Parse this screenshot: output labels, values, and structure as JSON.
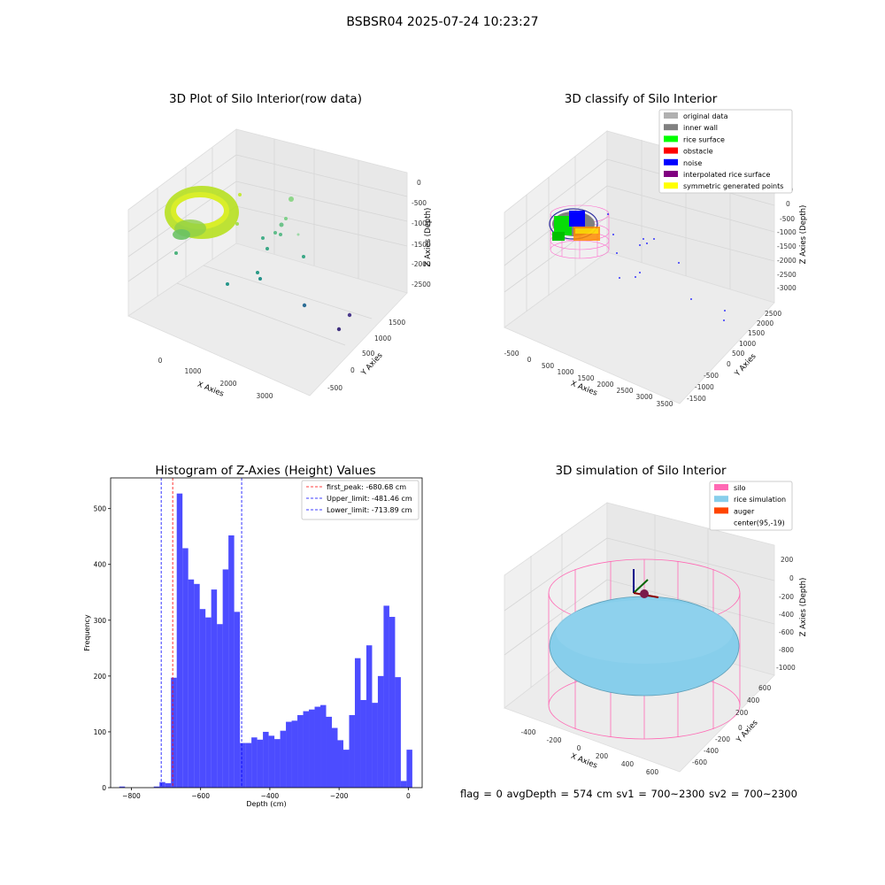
{
  "figure": {
    "suptitle": "BSBSR04 2025-07-24 10:23:27",
    "footer": "flag = 0     avgDepth = 574 cm  sv1 = 700~2300  sv2 = 700~2300"
  },
  "panels": {
    "raw": {
      "title": "3D Plot of Silo Interior(row data)",
      "xlabel": "X Axies",
      "ylabel": "Y Axies",
      "zlabel": "Z Axies (Depth)",
      "xticks": [
        "0",
        "1000",
        "2000",
        "3000"
      ],
      "yticks": [
        "-500",
        "0",
        "500",
        "1000",
        "1500"
      ],
      "zticks": [
        "0",
        "-500",
        "-1000",
        "-1500",
        "-2000",
        "-2500"
      ]
    },
    "classify": {
      "title": "3D classify of Silo Interior",
      "xlabel": "X Axies",
      "ylabel": "Y Axies",
      "zlabel": "Z Axies (Depth)",
      "xticks": [
        "-500",
        "0",
        "500",
        "1000",
        "1500",
        "2000",
        "2500",
        "3000",
        "3500"
      ],
      "yticks": [
        "-1500",
        "-1000",
        "-500",
        "0",
        "500",
        "1000",
        "1500",
        "2000",
        "2500"
      ],
      "zticks": [
        "500",
        "0",
        "-500",
        "-1000",
        "-1500",
        "-2000",
        "-2500",
        "-3000"
      ],
      "legend": [
        {
          "label": "original data",
          "color": "#b0b0b0"
        },
        {
          "label": "inner wall",
          "color": "#808080"
        },
        {
          "label": "rice surface",
          "color": "#00ff00"
        },
        {
          "label": "obstacle",
          "color": "#ff0000"
        },
        {
          "label": "noise",
          "color": "#0000ff"
        },
        {
          "label": "interpolated rice surface",
          "color": "#800080"
        },
        {
          "label": "symmetric generated points",
          "color": "#ffff00"
        }
      ]
    },
    "simulation": {
      "title": "3D simulation of Silo Interior",
      "xlabel": "X Axies",
      "ylabel": "Y Axies",
      "zlabel": "Z Axies (Depth)",
      "xticks": [
        "-400",
        "-200",
        "0",
        "200",
        "400",
        "600"
      ],
      "yticks": [
        "-600",
        "-400",
        "-200",
        "0",
        "200",
        "400",
        "600"
      ],
      "zticks": [
        "200",
        "0",
        "-200",
        "-400",
        "-600",
        "-800",
        "-1000"
      ],
      "legend": [
        {
          "label": "silo",
          "color": "#ff69b4"
        },
        {
          "label": "rice simulation",
          "color": "#87ceeb"
        },
        {
          "label": "auger",
          "color": "#ff4500"
        },
        {
          "label": "center(95,-19)",
          "color": "none"
        }
      ]
    }
  },
  "chart_data": {
    "type": "bar",
    "title": "Histogram of Z-Axies (Height) Values",
    "xlabel": "Depth (cm)",
    "ylabel": "Frequency",
    "xlim": [
      -860,
      40
    ],
    "ylim": [
      0,
      555
    ],
    "xticks": [
      -800,
      -600,
      -400,
      -200,
      0
    ],
    "yticks": [
      0,
      100,
      200,
      300,
      400,
      500
    ],
    "bar_color": "#0000ff",
    "bin_width": 16.6,
    "bin_starts": [
      -835,
      -818.4,
      -801.8,
      -785.2,
      -768.6,
      -752,
      -735.4,
      -718.8,
      -702.2,
      -685.6,
      -669,
      -652.4,
      -635.8,
      -619.2,
      -602.6,
      -586,
      -569.4,
      -552.8,
      -536.2,
      -519.6,
      -503,
      -486.4,
      -469.8,
      -453.2,
      -436.6,
      -420,
      -403.4,
      -386.8,
      -370.2,
      -353.6,
      -337,
      -320.4,
      -303.8,
      -287.2,
      -270.6,
      -254,
      -237.4,
      -220.8,
      -204.2,
      -187.6,
      -171,
      -154.4,
      -137.8,
      -121.2,
      -104.6,
      -88,
      -71.4,
      -54.8,
      -38.2,
      -21.6,
      -5
    ],
    "counts": [
      2,
      0,
      0,
      0,
      0,
      0,
      2,
      10,
      8,
      197,
      527,
      429,
      373,
      365,
      320,
      305,
      355,
      293,
      391,
      452,
      315,
      80,
      80,
      90,
      86,
      100,
      93,
      87,
      102,
      118,
      120,
      130,
      137,
      140,
      145,
      148,
      127,
      107,
      85,
      68,
      130,
      232,
      157,
      255,
      152,
      200,
      326,
      306,
      198,
      12,
      68
    ],
    "vlines": [
      {
        "label": "first_peak: -680.68 cm",
        "x": -680.68,
        "color": "#ff0000"
      },
      {
        "label": "Upper_limit: -481.46 cm",
        "x": -481.46,
        "color": "#0000ff"
      },
      {
        "label": "Lower_limit: -713.89 cm",
        "x": -713.89,
        "color": "#0000ff"
      }
    ]
  }
}
